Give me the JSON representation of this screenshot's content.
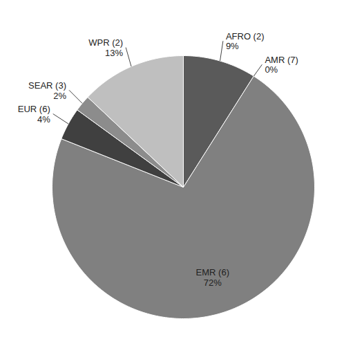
{
  "chart_data": {
    "type": "pie",
    "categories": [
      "AFRO (2)",
      "AMR (7)",
      "EMR (6)",
      "EUR (6)",
      "SEAR (3)",
      "WPR (2)"
    ],
    "values": [
      9,
      0,
      72,
      4,
      2,
      13
    ],
    "value_labels": [
      "9%",
      "0%",
      "72%",
      "4%",
      "2%",
      "13%"
    ],
    "colors": [
      "#5a5a5a",
      "#a0a0a0",
      "#808080",
      "#404040",
      "#8c8c8c",
      "#bfbfbf"
    ],
    "data_labels": true
  }
}
